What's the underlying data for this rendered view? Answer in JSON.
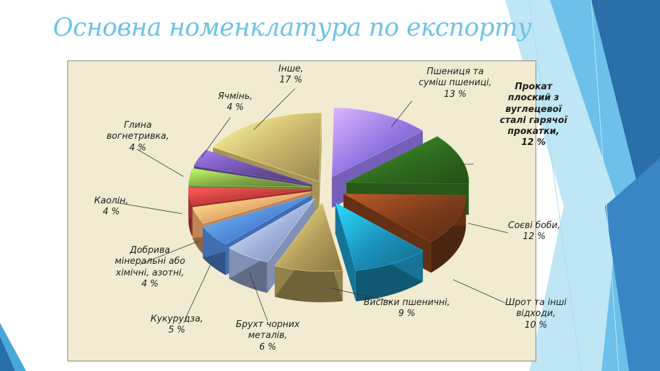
{
  "title": "Основна номенклатура по експорту",
  "chart_data": {
    "type": "pie",
    "style": "exploded-3d",
    "title": "",
    "legend": "none",
    "slices": [
      {
        "name": "Пшениця та суміш пшениці",
        "value": 13,
        "color": "#8f74e0",
        "label_lines": [
          "Пшениця та",
          "суміш пшениці,",
          "13 %"
        ]
      },
      {
        "name": "Прокат плоский з вуглецевої сталі гарячої прокатки",
        "value": 12,
        "color": "#2f6a1e",
        "label_lines": [
          "Прокат",
          "плоский з",
          "вуглецевої",
          "сталі гарячої",
          "прокатки,",
          "12 %"
        ]
      },
      {
        "name": "Соєві боби",
        "value": 12,
        "color": "#7a3b1a",
        "label_lines": [
          "Соєві боби,",
          "12 %"
        ]
      },
      {
        "name": "Шрот та інші відходи",
        "value": 10,
        "color": "#1b8fb8",
        "label_lines": [
          "Шрот та інші",
          "відходи,",
          "10 %"
        ]
      },
      {
        "name": "Висівки пшеничні",
        "value": 9,
        "color": "#b59f5c",
        "label_lines": [
          "Висівки пшеничні,",
          "9 %"
        ]
      },
      {
        "name": "Брухт чорних металів",
        "value": 6,
        "color": "#9db0da",
        "label_lines": [
          "Брухт чорних",
          "металів,",
          "6 %"
        ]
      },
      {
        "name": "Кукурудза",
        "value": 5,
        "color": "#4f86d8",
        "label_lines": [
          "Кукурудза,",
          "5 %"
        ]
      },
      {
        "name": "Добрива мінеральні або хімічні, азотні",
        "value": 4,
        "color": "#e8a46a",
        "label_lines": [
          "Добрива",
          "мінеральні або",
          "хімічні, азотні,",
          "4 %"
        ]
      },
      {
        "name": "Каолін",
        "value": 4,
        "color": "#c03a3a",
        "label_lines": [
          "Каолін,",
          "4 %"
        ]
      },
      {
        "name": "Глина вогнетривка",
        "value": 4,
        "color": "#7fa544",
        "label_lines": [
          "Глина",
          "вогнетривка,",
          "4 %"
        ]
      },
      {
        "name": "Ячмінь",
        "value": 4,
        "color": "#6a4f9e",
        "label_lines": [
          "Ячмінь,",
          "4 %"
        ]
      },
      {
        "name": "Інше",
        "value": 17,
        "color": "#c9b46a",
        "label_lines": [
          "Інше,",
          "17 %"
        ]
      }
    ]
  }
}
